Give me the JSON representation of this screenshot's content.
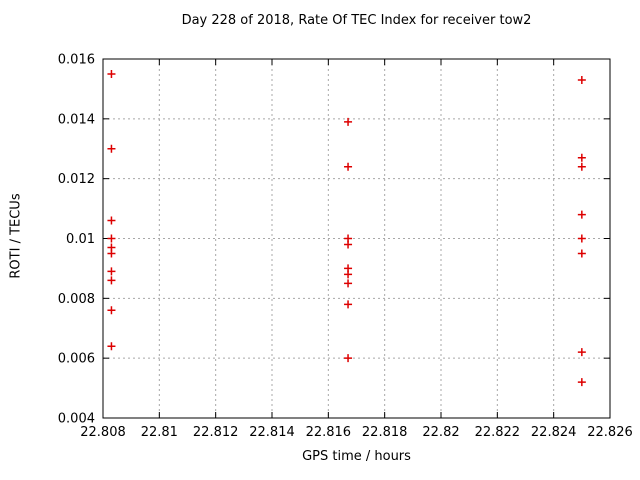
{
  "chart_data": {
    "type": "scatter",
    "title": "Day 228 of 2018, Rate Of TEC Index for receiver tow2",
    "xlabel": "GPS time / hours",
    "ylabel": "ROTI / TECUs",
    "xlim": [
      22.808,
      22.826
    ],
    "ylim": [
      0.004,
      0.016
    ],
    "x_ticks": [
      22.808,
      22.81,
      22.812,
      22.814,
      22.816,
      22.818,
      22.82,
      22.822,
      22.824,
      22.826
    ],
    "x_tick_labels": [
      "22.808",
      "22.81",
      "22.812",
      "22.814",
      "22.816",
      "22.818",
      "22.82",
      "22.822",
      "22.824",
      "22.826"
    ],
    "y_ticks": [
      0.004,
      0.006,
      0.008,
      0.01,
      0.012,
      0.014,
      0.016
    ],
    "y_tick_labels": [
      "0.004",
      "0.006",
      "0.008",
      "0.01",
      "0.012",
      "0.014",
      "0.016"
    ],
    "grid": true,
    "legend_position": "none",
    "marker": "plus",
    "marker_color": "#dd0000",
    "grid_color": "#a8a8a8",
    "axis_color": "#000000",
    "series": [
      {
        "name": "ROTI",
        "points": [
          [
            22.8083,
            0.0155
          ],
          [
            22.8083,
            0.013
          ],
          [
            22.8083,
            0.0106
          ],
          [
            22.8083,
            0.01
          ],
          [
            22.8083,
            0.0097
          ],
          [
            22.8083,
            0.0095
          ],
          [
            22.8083,
            0.0089
          ],
          [
            22.8083,
            0.0086
          ],
          [
            22.8083,
            0.0076
          ],
          [
            22.8083,
            0.0064
          ],
          [
            22.8167,
            0.0139
          ],
          [
            22.8167,
            0.0124
          ],
          [
            22.8167,
            0.01
          ],
          [
            22.8167,
            0.0098
          ],
          [
            22.8167,
            0.009
          ],
          [
            22.8167,
            0.0088
          ],
          [
            22.8167,
            0.0085
          ],
          [
            22.8167,
            0.0078
          ],
          [
            22.8167,
            0.006
          ],
          [
            22.825,
            0.0153
          ],
          [
            22.825,
            0.0127
          ],
          [
            22.825,
            0.0124
          ],
          [
            22.825,
            0.0108
          ],
          [
            22.825,
            0.01
          ],
          [
            22.825,
            0.0095
          ],
          [
            22.825,
            0.0062
          ],
          [
            22.825,
            0.0052
          ]
        ]
      }
    ]
  }
}
